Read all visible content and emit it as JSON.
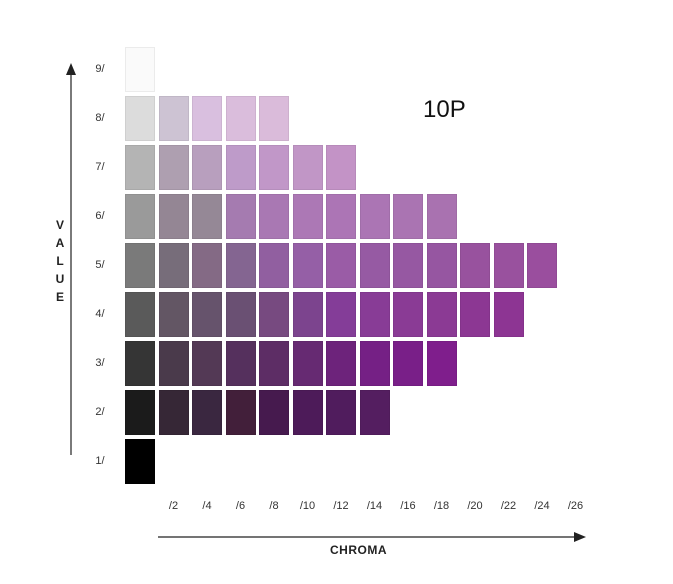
{
  "title": "10P",
  "y_axis_label": "VALUE",
  "x_axis_label": "CHROMA",
  "value_labels": [
    "9/",
    "8/",
    "7/",
    "6/",
    "5/",
    "4/",
    "3/",
    "2/",
    "1/"
  ],
  "chroma_labels": [
    "/2",
    "/4",
    "/6",
    "/8",
    "/10",
    "/12",
    "/14",
    "/16",
    "/18",
    "/20",
    "/22",
    "/24",
    "/26"
  ],
  "rows": [
    {
      "value": 9,
      "colors": [
        "#fafafa"
      ]
    },
    {
      "value": 8,
      "colors": [
        "#dcdcdc",
        "#cdc3d3",
        "#d9bfdf",
        "#dabddc",
        "#dabbda"
      ]
    },
    {
      "value": 7,
      "colors": [
        "#b4b4b4",
        "#ae9fb0",
        "#b89fbe",
        "#be9bc9",
        "#c197c8",
        "#c196c6",
        "#c393c6"
      ]
    },
    {
      "value": 6,
      "colors": [
        "#9a9a9a",
        "#948694",
        "#958896",
        "#a57bb0",
        "#a978b3",
        "#ac78b5",
        "#ac75b5",
        "#ab75b4",
        "#aa74b2",
        "#a972b0"
      ]
    },
    {
      "value": 5,
      "colors": [
        "#7a7a7a",
        "#776d7a",
        "#846a85",
        "#846591",
        "#915fa0",
        "#955fa6",
        "#9a5ca6",
        "#965aa3",
        "#9658a2",
        "#9656a1",
        "#98529e",
        "#99519e",
        "#9a4e9e"
      ]
    },
    {
      "value": 4,
      "colors": [
        "#5a5a5a",
        "#635664",
        "#66536c",
        "#6a5073",
        "#774a80",
        "#7c448e",
        "#843d98",
        "#883c96",
        "#8a3b95",
        "#8b3a94",
        "#8c3793",
        "#8d3593"
      ]
    },
    {
      "value": 3,
      "colors": [
        "#353535",
        "#4a3a4b",
        "#533955",
        "#55305d",
        "#5d2d65",
        "#662a72",
        "#6d237b",
        "#752085",
        "#791f88",
        "#7f1e8c"
      ]
    },
    {
      "value": 2,
      "colors": [
        "#1b1b1b",
        "#362736",
        "#3a2740",
        "#421f3a",
        "#461a4e",
        "#4d1b59",
        "#501c5d",
        "#541e60"
      ]
    },
    {
      "value": 1,
      "colors": [
        "#000000"
      ]
    }
  ]
}
